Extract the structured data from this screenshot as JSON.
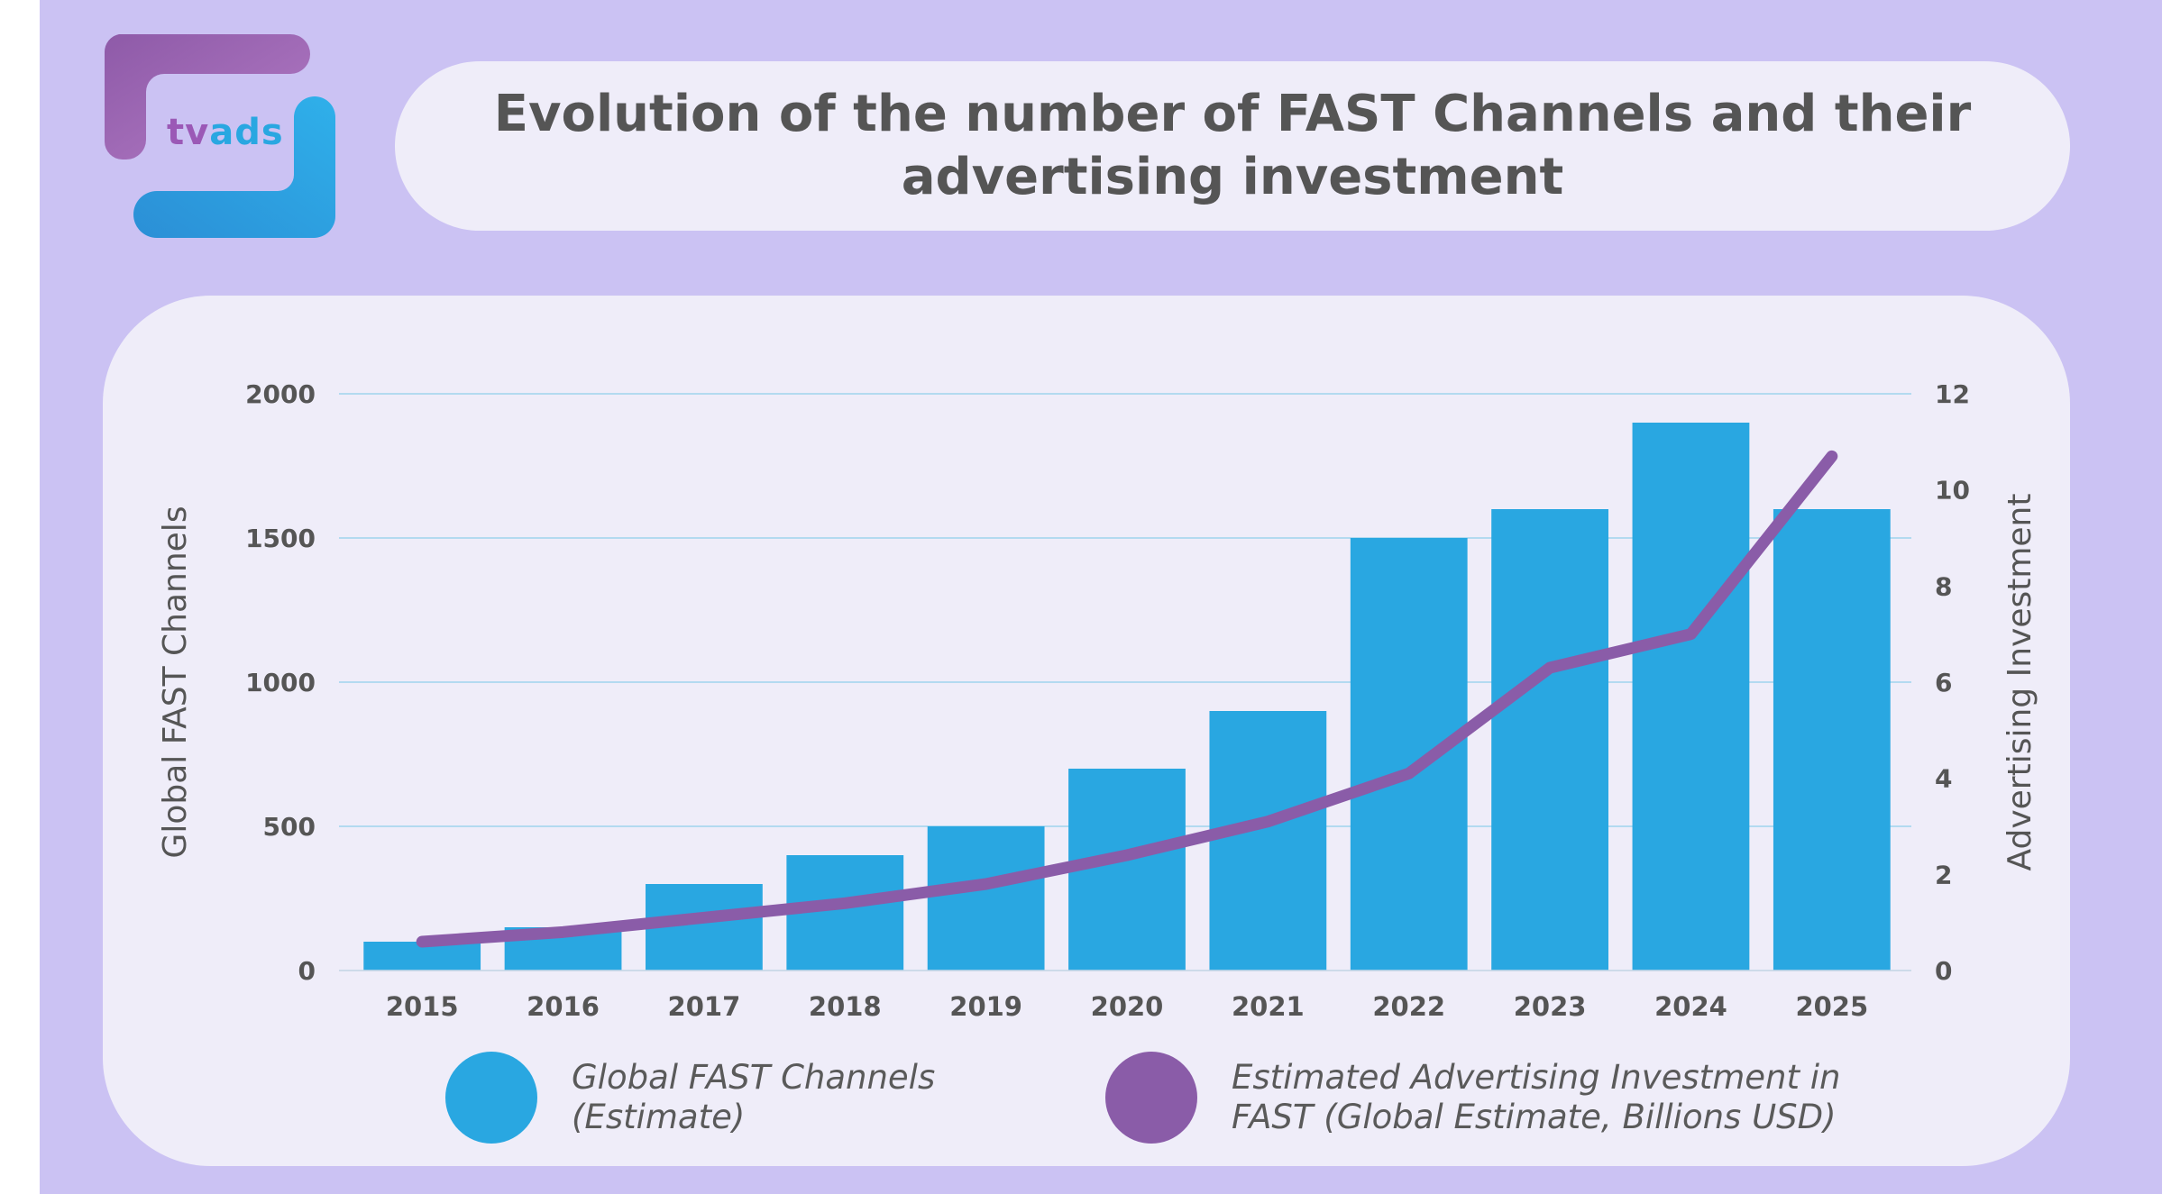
{
  "brand": {
    "logo_tv": "tv",
    "logo_ads": "ads"
  },
  "header": {
    "title": "Evolution of the number of FAST Channels and their advertising investment"
  },
  "colors": {
    "background": "#cbc2f3",
    "card": "#efedf9",
    "bar": "#29a7e1",
    "line": "#8a5ca8",
    "grid": "#9fd3ee",
    "text": "#555555"
  },
  "chart_data": {
    "type": "bar",
    "categories": [
      "2015",
      "2016",
      "2017",
      "2018",
      "2019",
      "2020",
      "2021",
      "2022",
      "2023",
      "2024",
      "2025"
    ],
    "series": [
      {
        "name": "Global FAST Channels (Estimate)",
        "type": "bar",
        "axis": "left",
        "values": [
          100,
          150,
          300,
          400,
          500,
          700,
          900,
          1500,
          1600,
          1900,
          1600
        ]
      },
      {
        "name": "Estimated Advertising Investment in FAST (Global Estimate, Billions USD)",
        "type": "line",
        "axis": "right",
        "values": [
          0.6,
          0.8,
          1.1,
          1.4,
          1.8,
          2.4,
          3.1,
          4.1,
          6.3,
          7.0,
          10.7
        ]
      }
    ],
    "ylabel": "Global FAST Channels",
    "ylim": [
      0,
      2000
    ],
    "yticks": [
      0,
      500,
      1000,
      1500,
      2000
    ],
    "y2label": "Advertising Investment",
    "y2lim": [
      0,
      12
    ],
    "y2ticks": [
      0,
      2,
      4,
      6,
      8,
      10,
      12
    ],
    "grid": true,
    "legend_position": "bottom"
  },
  "legend": {
    "bar_label_line1": "Global FAST Channels",
    "bar_label_line2": "(Estimate)",
    "line_label_line1": "Estimated Advertising Investment in",
    "line_label_line2": "FAST (Global Estimate, Billions USD)"
  }
}
